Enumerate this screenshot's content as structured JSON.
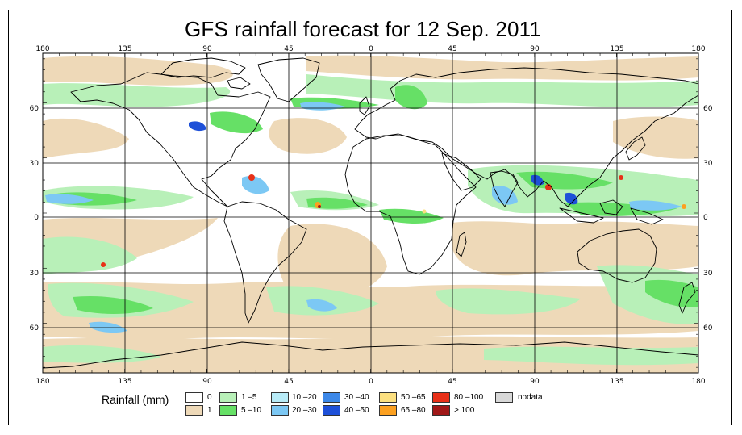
{
  "title": "GFS rainfall forecast for 12 Sep. 2011",
  "axes": {
    "lon_ticks": [
      "180",
      "135",
      "90",
      "45",
      "0",
      "45",
      "90",
      "135",
      "180"
    ],
    "lat_ticks": [
      "60",
      "30",
      "0",
      "30",
      "60"
    ]
  },
  "legend": {
    "title": "Rainfall (mm)",
    "classes": [
      {
        "label": "0",
        "color": "#ffffff"
      },
      {
        "label": "1",
        "color": "#eed9b8"
      },
      {
        "label": "1 –5",
        "color": "#b8f0b8"
      },
      {
        "label": "5 –10",
        "color": "#66e066"
      },
      {
        "label": "10 –20",
        "color": "#b8ecf8"
      },
      {
        "label": "20 –30",
        "color": "#7cc8f4"
      },
      {
        "label": "30 –40",
        "color": "#3c88e8"
      },
      {
        "label": "40 –50",
        "color": "#1e50d8"
      },
      {
        "label": "50 –65",
        "color": "#fce080"
      },
      {
        "label": "65 –80",
        "color": "#fca020"
      },
      {
        "label": "80 –100",
        "color": "#e83018"
      },
      {
        "label": "> 100",
        "color": "#a01818"
      },
      {
        "label": "nodata",
        "color": "#d8d8d8"
      }
    ]
  }
}
